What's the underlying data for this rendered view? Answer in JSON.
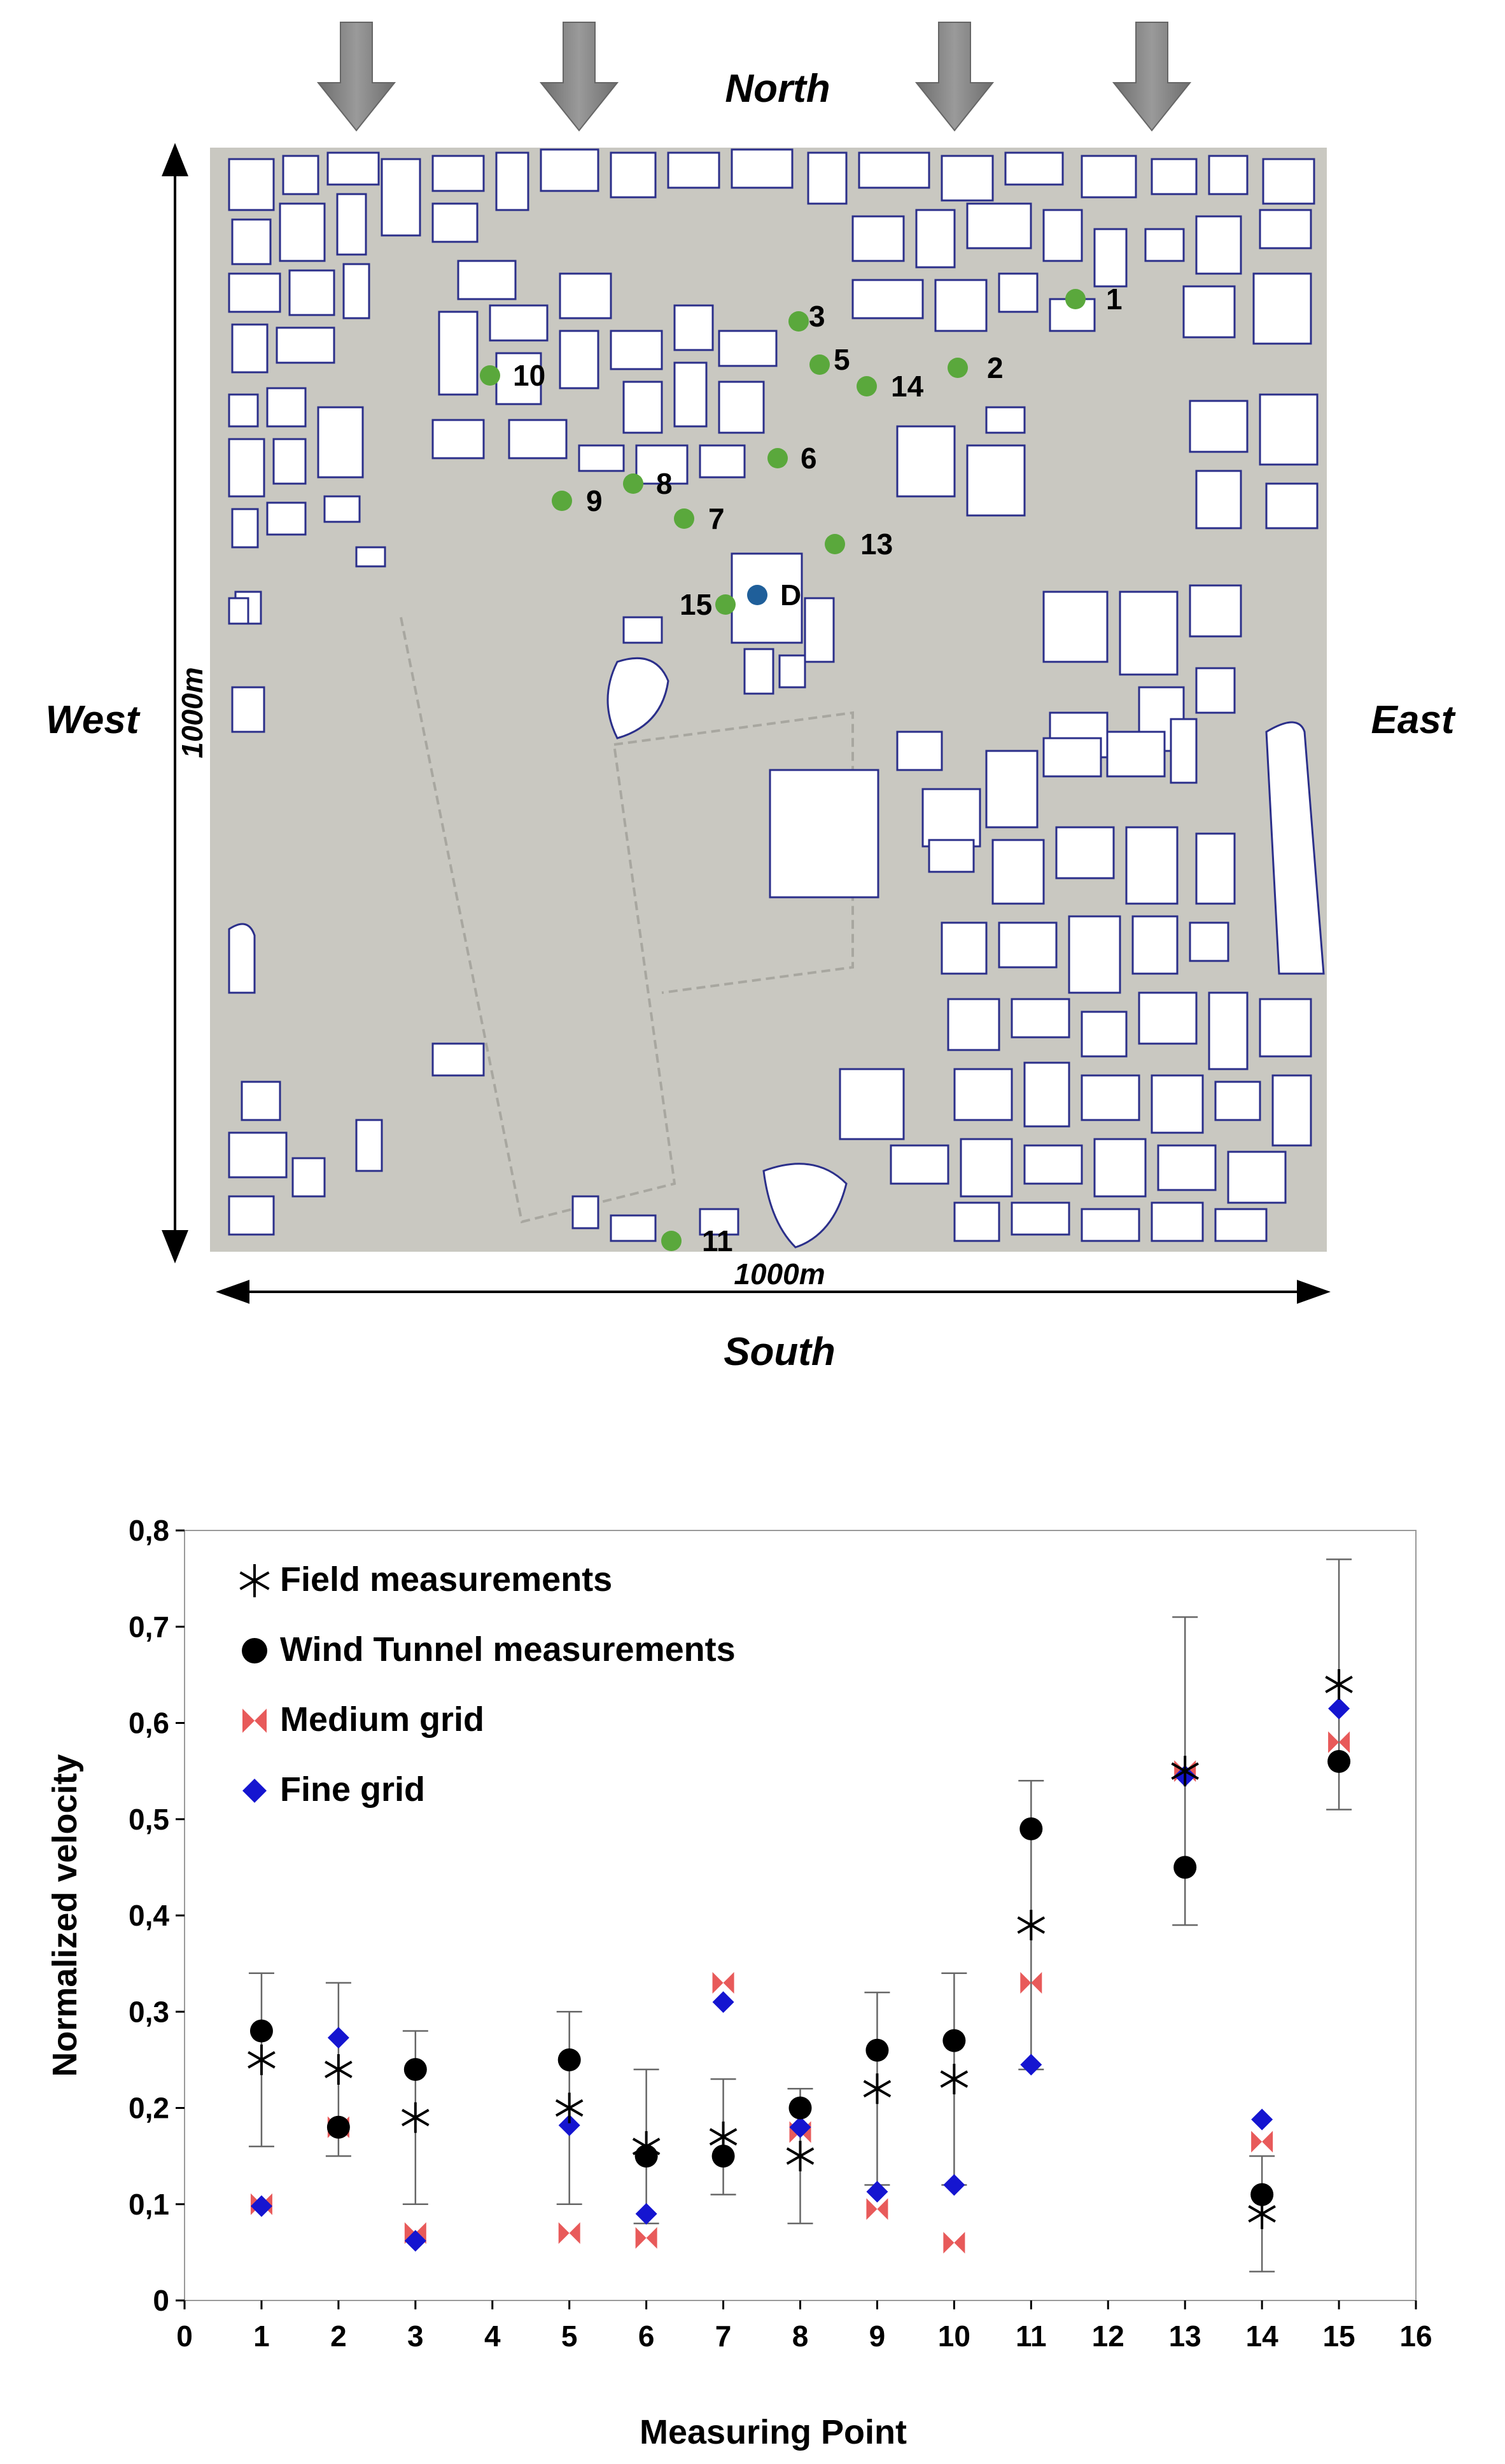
{
  "map": {
    "north_label": "North",
    "south_label": "South",
    "west_label": "West",
    "east_label": "East",
    "scale_vertical": "1000m",
    "scale_horizontal": "1000m",
    "point_color": "#5aa83c",
    "point_d_color": "#1f5f9a",
    "points": [
      {
        "label": "1"
      },
      {
        "label": "2"
      },
      {
        "label": "3"
      },
      {
        "label": "5"
      },
      {
        "label": "14"
      },
      {
        "label": "10"
      },
      {
        "label": "6"
      },
      {
        "label": "8"
      },
      {
        "label": "9"
      },
      {
        "label": "7"
      },
      {
        "label": "13"
      },
      {
        "label": "15"
      },
      {
        "label": "D"
      },
      {
        "label": "11"
      }
    ]
  },
  "chart_data": {
    "type": "scatter",
    "xlabel": "Measuring Point",
    "ylabel": "Normalized velocity",
    "xlim": [
      0,
      16
    ],
    "ylim": [
      0,
      0.8
    ],
    "x_ticks": [
      "0",
      "1",
      "2",
      "3",
      "4",
      "5",
      "6",
      "7",
      "8",
      "9",
      "10",
      "11",
      "12",
      "13",
      "14",
      "15",
      "16"
    ],
    "y_ticks": [
      "0",
      "0,1",
      "0,2",
      "0,3",
      "0,4",
      "0,5",
      "0,6",
      "0,7",
      "0,8"
    ],
    "legend_position": "top-left",
    "error_bars": [
      {
        "x": 1,
        "low": 0.16,
        "high": 0.34
      },
      {
        "x": 2,
        "low": 0.15,
        "high": 0.33
      },
      {
        "x": 3,
        "low": 0.1,
        "high": 0.28
      },
      {
        "x": 5,
        "low": 0.1,
        "high": 0.3
      },
      {
        "x": 6,
        "low": 0.08,
        "high": 0.24
      },
      {
        "x": 7,
        "low": 0.11,
        "high": 0.23
      },
      {
        "x": 8,
        "low": 0.08,
        "high": 0.22
      },
      {
        "x": 9,
        "low": 0.12,
        "high": 0.32
      },
      {
        "x": 10,
        "low": 0.12,
        "high": 0.34
      },
      {
        "x": 11,
        "low": 0.24,
        "high": 0.54
      },
      {
        "x": 13,
        "low": 0.39,
        "high": 0.71
      },
      {
        "x": 14,
        "low": 0.03,
        "high": 0.15
      },
      {
        "x": 15,
        "low": 0.51,
        "high": 0.77
      }
    ],
    "series": [
      {
        "name": "Field measurements",
        "marker": "asterisk",
        "color": "#000000",
        "points": [
          [
            1,
            0.25
          ],
          [
            2,
            0.24
          ],
          [
            3,
            0.19
          ],
          [
            5,
            0.2
          ],
          [
            6,
            0.16
          ],
          [
            7,
            0.17
          ],
          [
            8,
            0.15
          ],
          [
            9,
            0.22
          ],
          [
            10,
            0.23
          ],
          [
            11,
            0.39
          ],
          [
            13,
            0.55
          ],
          [
            14,
            0.09
          ],
          [
            15,
            0.64
          ]
        ]
      },
      {
        "name": "Wind Tunnel measurements",
        "marker": "circle",
        "color": "#000000",
        "points": [
          [
            1,
            0.28
          ],
          [
            2,
            0.18
          ],
          [
            3,
            0.24
          ],
          [
            5,
            0.25
          ],
          [
            6,
            0.15
          ],
          [
            7,
            0.15
          ],
          [
            8,
            0.2
          ],
          [
            9,
            0.26
          ],
          [
            10,
            0.27
          ],
          [
            11,
            0.49
          ],
          [
            13,
            0.45
          ],
          [
            14,
            0.11
          ],
          [
            15,
            0.56
          ]
        ]
      },
      {
        "name": "Medium grid",
        "marker": "bowtie",
        "color": "#e85a5a",
        "points": [
          [
            1,
            0.1
          ],
          [
            2,
            0.18
          ],
          [
            3,
            0.07
          ],
          [
            5,
            0.07
          ],
          [
            6,
            0.065
          ],
          [
            7,
            0.33
          ],
          [
            8,
            0.175
          ],
          [
            9,
            0.095
          ],
          [
            10,
            0.06
          ],
          [
            11,
            0.33
          ],
          [
            13,
            0.55
          ],
          [
            14,
            0.165
          ],
          [
            15,
            0.58
          ]
        ]
      },
      {
        "name": "Fine grid",
        "marker": "diamond",
        "color": "#1515d0",
        "points": [
          [
            1,
            0.098
          ],
          [
            2,
            0.273
          ],
          [
            3,
            0.062
          ],
          [
            5,
            0.182
          ],
          [
            6,
            0.09
          ],
          [
            7,
            0.31
          ],
          [
            8,
            0.18
          ],
          [
            9,
            0.113
          ],
          [
            10,
            0.12
          ],
          [
            11,
            0.245
          ],
          [
            13,
            0.545
          ],
          [
            14,
            0.188
          ],
          [
            15,
            0.615
          ]
        ]
      }
    ]
  }
}
